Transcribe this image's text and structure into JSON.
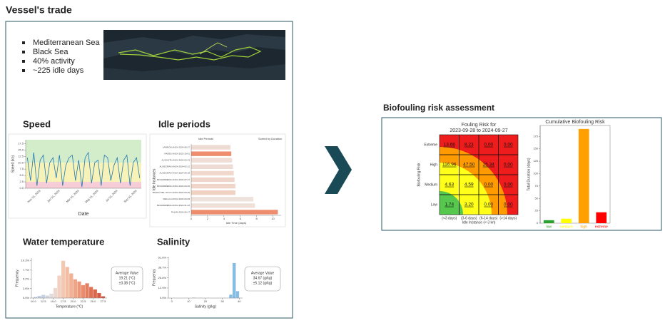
{
  "header": {
    "title": "Vessel's trade"
  },
  "trade": {
    "bullets": [
      "Mediterranean Sea",
      "Black Sea",
      "40% activity",
      "~225 idle days"
    ]
  },
  "sections": {
    "speed": "Speed",
    "idle": "Idle periods",
    "water": "Water temperature",
    "salinity": "Salinity",
    "risk": "Biofouling risk assessment"
  },
  "chart_data": [
    {
      "type": "line",
      "x_label": "Date",
      "y_label": "Speed (kn)",
      "categories": [
        null,
        null,
        null,
        null,
        "Nov 01, 2023",
        null,
        null,
        null,
        null,
        null,
        "Jan 01, 2024",
        null,
        null,
        null,
        null,
        null,
        "Mar 01, 2024",
        null,
        null,
        null,
        null,
        null,
        "May 01, 2024",
        null,
        null,
        null,
        null,
        null,
        "Jul 01, 2024",
        null,
        null,
        null,
        null,
        null,
        "Sep 01, 2024",
        null
      ],
      "values": [
        12,
        3,
        14,
        1,
        11,
        13,
        2,
        10,
        12,
        4,
        13,
        1,
        9,
        12,
        13,
        3,
        11,
        0.5,
        12,
        14,
        2,
        10,
        11,
        1,
        13,
        12,
        3,
        9,
        12,
        2,
        11,
        13,
        1,
        10,
        12,
        4
      ],
      "color": "#1f77b4",
      "ylim": [
        0,
        19
      ],
      "yticks": [
        {
          "value": 0,
          "label": "0.0"
        },
        2.5,
        {
          "value": 5,
          "label": "5.0"
        },
        7.5,
        {
          "value": 10,
          "label": "10.0"
        },
        12.5,
        {
          "value": 15,
          "label": "15.0"
        },
        17.5
      ],
      "bands": [
        {
          "from": 0,
          "to": 2.5,
          "color": "#f6ccd6"
        },
        {
          "from": 2.5,
          "to": 10,
          "color": "#f7f3b8"
        },
        {
          "from": 10,
          "to": 19,
          "color": "#d3ecc9"
        }
      ]
    },
    {
      "type": "hbar",
      "title": "Idle Periods",
      "subtitle": "Sorted by Duration",
      "x_label": "Idle Time (days)",
      "y_label": "Idle Instances",
      "categories": [
        "LAVRION ANCH 2024-06-27",
        "RADES ANCH 2023-10-01",
        "AUGUSTA ANCH 2024-02-23",
        "ALGECIRAS ANCH 2024-02-12",
        "ALGECIRAS ANCH 2024-06-18",
        "MOHAMMEDIA ANCH 2024-07-27",
        "MOHAMMEDIA ANCH 2024-03-06",
        "BANCO DEL HOYO ANCH 2024-03-06",
        "MELILLA ANCH 2024-03-09",
        "MOHAMMEDIA ANCH 2024-01-22",
        "PALMA 2024-06-17"
      ],
      "values": [
        4.8,
        4.9,
        5.0,
        5.1,
        5.2,
        5.3,
        5.4,
        5.4,
        7.6,
        7.8,
        10.6
      ],
      "colors": [
        "#eedbd3",
        "#ee8c6e",
        "#efdcd4",
        "#eedbd3",
        "#f0d8cd",
        "#f0d6ca",
        "#f0d4c7",
        "#f0d2c3",
        "#eee2dc",
        "#efe0d8",
        "#ee8c6e"
      ],
      "xlim": [
        0,
        11
      ],
      "xticks": [
        0,
        2,
        4,
        6,
        8,
        10
      ]
    },
    {
      "type": "histogram",
      "x_label": "Temperature (°C)",
      "y_label": "Frequency",
      "bins": [
        10,
        11,
        12,
        13,
        14,
        15,
        16,
        17,
        18,
        19,
        20,
        21,
        22,
        23,
        24,
        25,
        26,
        27,
        28
      ],
      "counts": [
        0.3,
        0.6,
        0.9,
        0.7,
        1.2,
        2.8,
        6.2,
        10.3,
        8.6,
        6.8,
        5.2,
        4.6,
        3.6,
        4.1,
        3.1,
        2.4,
        1.4,
        0.5
      ],
      "colors": [
        "#b9c8e3",
        "#c1cde4",
        "#c9d1e2",
        "#d3d6e0",
        "#e0dcdc",
        "#ecd8cf",
        "#f1d0c0",
        "#f3c8b1",
        "#f2bda2",
        "#f0b194",
        "#eea486",
        "#ec9779",
        "#e98b6c",
        "#e47e60",
        "#df7255",
        "#da664b",
        "#d55b42",
        "#cf5039"
      ],
      "xlim": [
        9.5,
        28.5
      ],
      "xticks": [
        {
          "value": 10,
          "label": "10.0"
        },
        12.5,
        {
          "value": 15,
          "label": "15.0"
        },
        17.5,
        {
          "value": 20,
          "label": "20.0"
        },
        22.5,
        {
          "value": 25,
          "label": "25.0"
        },
        27.5
      ],
      "ylim": [
        0,
        11
      ],
      "yticks": [
        {
          "value": 0,
          "label": "0.0%"
        },
        {
          "value": 2.6,
          "label": "2.6%"
        },
        {
          "value": 5.2,
          "label": "5.2%"
        },
        {
          "value": 7.7,
          "label": "7.7%"
        },
        {
          "value": 10.3,
          "label": "10.3%"
        }
      ],
      "stats": {
        "title": "Average Value",
        "mean": "19.21 (°C)",
        "spread": "±3.38 (°C)"
      }
    },
    {
      "type": "histogram",
      "x_label": "Salinity (g/kg)",
      "y_label": "Frequency",
      "bins": [
        0,
        2,
        4,
        6,
        8,
        10,
        12,
        14,
        16,
        18,
        20,
        22,
        24,
        26,
        28,
        30,
        32,
        34,
        36,
        38,
        40
      ],
      "counts": [
        0,
        0,
        0,
        0,
        0,
        0,
        0.6,
        0,
        0.4,
        0,
        0,
        0,
        0,
        0,
        0,
        0,
        0,
        4.5,
        45,
        9
      ],
      "color": "#86bde3",
      "xlim": [
        -2,
        42
      ],
      "xticks": [
        0,
        10,
        20,
        30,
        40
      ],
      "ylim": [
        0,
        53
      ],
      "yticks": [
        {
          "value": 0,
          "label": "0.0%"
        },
        {
          "value": 12.9,
          "label": "12.9%"
        },
        {
          "value": 25.8,
          "label": "25.8%"
        },
        {
          "value": 38.7,
          "label": "38.7%"
        },
        {
          "value": 51.6,
          "label": "51.6%"
        }
      ],
      "stats": {
        "title": "Average Value",
        "mean": "34.67 (g/kg)",
        "spread": "±5.12 (g/kg)"
      }
    },
    {
      "type": "heatmap",
      "title": "Fouling Risk for",
      "subtitle": "2023-09-28 to 2024-09-27",
      "x_label": "Idle Instance (< 3 kn)",
      "y_label": "Biofouling Risk",
      "columns": [
        "(<3 days)",
        "(3-6 days)",
        "(6-14 days)",
        "(>14 days)"
      ],
      "rows": [
        "Extreme",
        "High",
        "Medium",
        "Low"
      ],
      "values": [
        [
          13.66,
          8.23,
          0,
          0
        ],
        [
          116.96,
          47.5,
          25.34,
          0
        ],
        [
          4.63,
          4.59,
          0,
          0
        ],
        [
          1.74,
          3.2,
          0,
          0
        ]
      ],
      "value_labels": [
        [
          "13.66",
          "8.23",
          "0.00",
          "0.00"
        ],
        [
          "116.96",
          "47.50",
          "25.34",
          "0.00"
        ],
        [
          "4.63",
          "4.59",
          "0.00",
          "0.00"
        ],
        [
          "1.74",
          "3.20",
          "0.00",
          "0.00"
        ]
      ]
    },
    {
      "type": "bar",
      "title": "Cumulative Biofouling Risk",
      "y_label": "Total Duration (days)",
      "categories": [
        "low",
        "medium",
        "high",
        "extreme"
      ],
      "values": [
        6,
        9,
        190,
        22
      ],
      "colors": [
        "#2ca02c",
        "#ffff00",
        "#ff9f00",
        "#ff0000"
      ],
      "ylim": [
        0,
        197
      ],
      "yticks": [
        0,
        25,
        50,
        75,
        100,
        125,
        150,
        175
      ]
    }
  ]
}
